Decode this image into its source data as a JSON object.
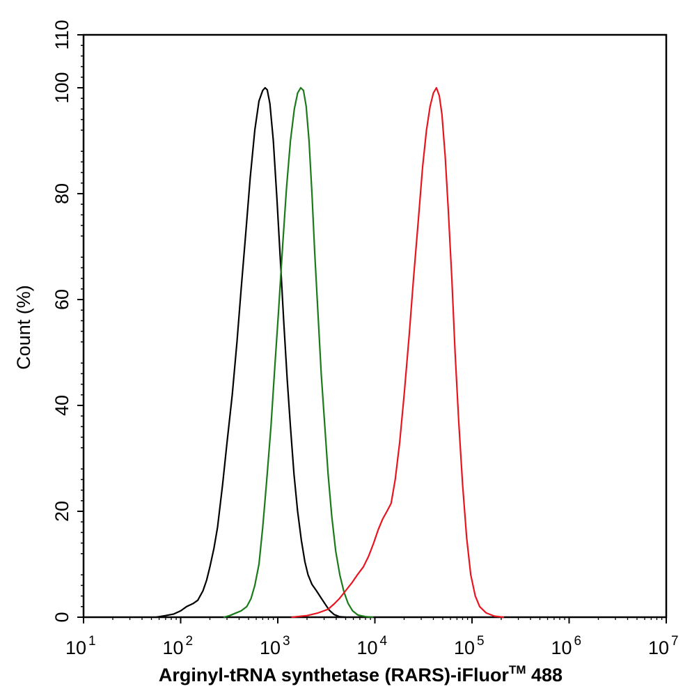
{
  "chart_data": {
    "type": "line",
    "title": "",
    "xlabel": "Arginyl-tRNA synthetase (RARS)-iFluor",
    "xlabel_superscript": "TM",
    "xlabel_suffix": " 488",
    "ylabel": "Count  (%)",
    "x_scale": "log",
    "xlim": [
      10,
      10000000
    ],
    "ylim": [
      0,
      110
    ],
    "x_ticks": [
      {
        "base": "10",
        "exp": "1",
        "value": 10
      },
      {
        "base": "10",
        "exp": "2",
        "value": 100
      },
      {
        "base": "10",
        "exp": "3",
        "value": 1000
      },
      {
        "base": "10",
        "exp": "4",
        "value": 10000
      },
      {
        "base": "10",
        "exp": "5",
        "value": 100000
      },
      {
        "base": "10",
        "exp": "6",
        "value": 1000000
      },
      {
        "base": "10",
        "exp": "7",
        "value": 10000000
      }
    ],
    "y_ticks": [
      "0",
      "20",
      "40",
      "60",
      "80",
      "100",
      "110"
    ],
    "grid": false,
    "legend": "none",
    "series": [
      {
        "color": "#000000",
        "points": [
          [
            56,
            0
          ],
          [
            70,
            0.3
          ],
          [
            85,
            0.6
          ],
          [
            100,
            1.2
          ],
          [
            115,
            2
          ],
          [
            135,
            2.6
          ],
          [
            150,
            3.2
          ],
          [
            170,
            5
          ],
          [
            185,
            7
          ],
          [
            200,
            9.5
          ],
          [
            220,
            13
          ],
          [
            240,
            17
          ],
          [
            270,
            25
          ],
          [
            300,
            33
          ],
          [
            340,
            42
          ],
          [
            380,
            52
          ],
          [
            420,
            62
          ],
          [
            470,
            73
          ],
          [
            520,
            83
          ],
          [
            580,
            92
          ],
          [
            640,
            97.5
          ],
          [
            700,
            99.5
          ],
          [
            740,
            100
          ],
          [
            780,
            99.6
          ],
          [
            830,
            97
          ],
          [
            900,
            90
          ],
          [
            980,
            79
          ],
          [
            1060,
            68
          ],
          [
            1150,
            56
          ],
          [
            1250,
            45
          ],
          [
            1350,
            36
          ],
          [
            1470,
            27
          ],
          [
            1600,
            20
          ],
          [
            1750,
            14.5
          ],
          [
            1900,
            10.5
          ],
          [
            2050,
            8
          ],
          [
            2250,
            6.2
          ],
          [
            2500,
            5
          ],
          [
            2800,
            3.6
          ],
          [
            3100,
            2.4
          ],
          [
            3400,
            1.3
          ],
          [
            3800,
            0.5
          ],
          [
            4300,
            0.1
          ],
          [
            5000,
            0
          ]
        ]
      },
      {
        "color": "#1a7a1a",
        "points": [
          [
            280,
            0
          ],
          [
            320,
            0.3
          ],
          [
            360,
            0.7
          ],
          [
            420,
            1.2
          ],
          [
            480,
            2
          ],
          [
            530,
            3.5
          ],
          [
            580,
            6
          ],
          [
            640,
            10
          ],
          [
            700,
            17
          ],
          [
            770,
            26
          ],
          [
            850,
            36
          ],
          [
            930,
            47
          ],
          [
            1020,
            58
          ],
          [
            1120,
            70
          ],
          [
            1230,
            81
          ],
          [
            1350,
            90
          ],
          [
            1480,
            96
          ],
          [
            1600,
            99
          ],
          [
            1720,
            100
          ],
          [
            1840,
            99.5
          ],
          [
            1960,
            96.5
          ],
          [
            2100,
            90
          ],
          [
            2250,
            80
          ],
          [
            2400,
            69
          ],
          [
            2600,
            57
          ],
          [
            2800,
            46
          ],
          [
            3050,
            36
          ],
          [
            3300,
            27
          ],
          [
            3600,
            19
          ],
          [
            3950,
            12.5
          ],
          [
            4350,
            8
          ],
          [
            4800,
            4.8
          ],
          [
            5300,
            2.6
          ],
          [
            5900,
            1.2
          ],
          [
            6700,
            0.4
          ],
          [
            8000,
            0.1
          ],
          [
            9500,
            0
          ]
        ]
      },
      {
        "color": "#e8141e",
        "points": [
          [
            1400,
            0
          ],
          [
            2000,
            0.3
          ],
          [
            2600,
            0.8
          ],
          [
            3300,
            1.5
          ],
          [
            3800,
            2.5
          ],
          [
            4300,
            3.5
          ],
          [
            5000,
            5
          ],
          [
            5800,
            6.5
          ],
          [
            6600,
            8
          ],
          [
            7600,
            9.5
          ],
          [
            8600,
            11.5
          ],
          [
            9700,
            14
          ],
          [
            10800,
            16.5
          ],
          [
            12000,
            18.5
          ],
          [
            13300,
            20
          ],
          [
            14700,
            21.5
          ],
          [
            16200,
            26
          ],
          [
            18000,
            33
          ],
          [
            20000,
            42
          ],
          [
            22500,
            53
          ],
          [
            25000,
            64
          ],
          [
            28000,
            75
          ],
          [
            31000,
            85
          ],
          [
            34000,
            92
          ],
          [
            37000,
            96.5
          ],
          [
            40000,
            99
          ],
          [
            43000,
            100
          ],
          [
            46000,
            98.5
          ],
          [
            49000,
            95
          ],
          [
            53000,
            87
          ],
          [
            57000,
            77
          ],
          [
            62000,
            64
          ],
          [
            67000,
            50
          ],
          [
            73000,
            37
          ],
          [
            80000,
            25
          ],
          [
            88000,
            15
          ],
          [
            97000,
            8
          ],
          [
            108000,
            4
          ],
          [
            120000,
            2
          ],
          [
            140000,
            0.8
          ],
          [
            170000,
            0.2
          ],
          [
            210000,
            0
          ]
        ]
      }
    ]
  }
}
